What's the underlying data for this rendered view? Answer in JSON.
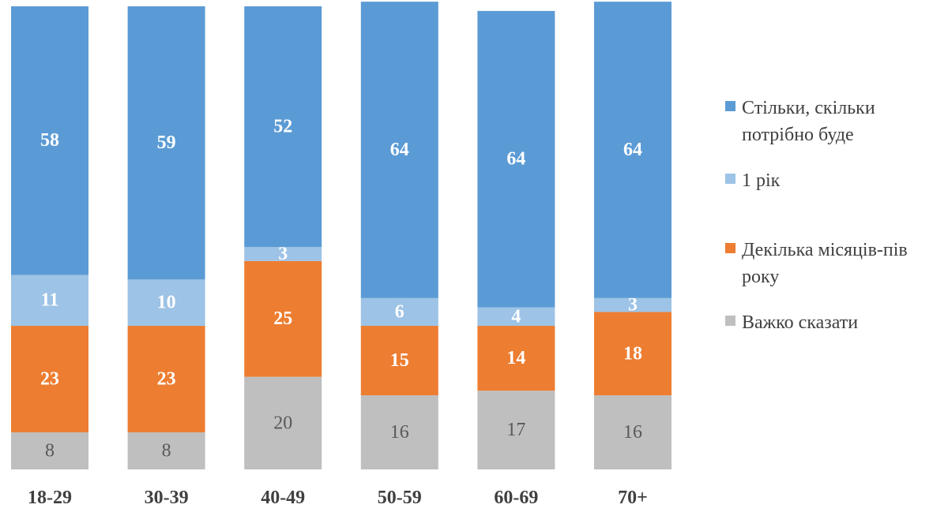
{
  "chart_data": {
    "type": "bar",
    "stacked": true,
    "categories": [
      "18-29",
      "30-39",
      "40-49",
      "50-59",
      "60-69",
      "70+"
    ],
    "series": [
      {
        "name": "Важко сказати",
        "color": "#bfbfbf",
        "label_style": "grey",
        "values": [
          8,
          8,
          20,
          16,
          17,
          16
        ]
      },
      {
        "name": "Декілька місяців-пів року",
        "color": "#ed7d31",
        "label_style": "bold",
        "values": [
          23,
          23,
          25,
          15,
          14,
          18
        ]
      },
      {
        "name": "1 рік",
        "color": "#9dc3e6",
        "label_style": "bold",
        "values": [
          11,
          10,
          3,
          6,
          4,
          3
        ]
      },
      {
        "name": "Стільки, скільки потрібно буде",
        "color": "#5b9bd5",
        "label_style": "bold",
        "values": [
          58,
          59,
          52,
          64,
          64,
          64
        ]
      }
    ],
    "legend_order": [
      "Стільки, скільки потрібно буде",
      "1 рік",
      "Декілька місяців-пів року",
      "Важко сказати"
    ],
    "legend_position": "right",
    "ylim": [
      0,
      100
    ],
    "grid": false
  }
}
